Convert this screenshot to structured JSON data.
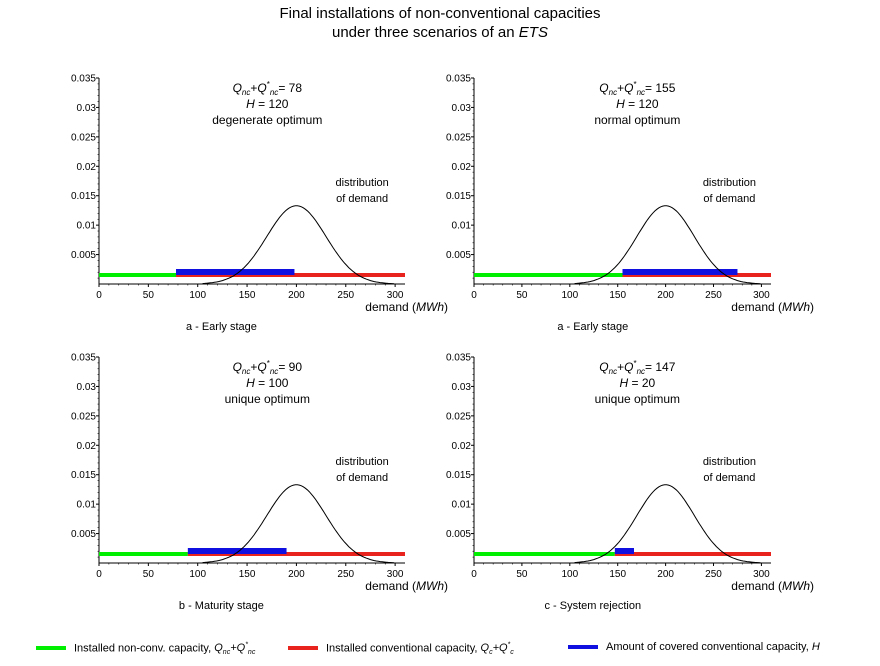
{
  "figure": {
    "title_line1": "Final installations of non-conventional capacities",
    "title_line2_prefix": "under three scenarios of an ",
    "title_line2_em": "ETS"
  },
  "colors": {
    "non_conventional": "#00ee00",
    "conventional": "#e8231e",
    "covered": "#1010e0",
    "distribution": "#000000"
  },
  "legend": [
    {
      "key": "non_conventional",
      "label": "Installed non-conv. capacity, ",
      "symbol": "Q_nc+Q*_nc"
    },
    {
      "key": "conventional",
      "label": "Installed conventional capacity, ",
      "symbol": "Q_c+Q*_c"
    },
    {
      "key": "covered",
      "label": "Amount of covered conventional capacity, ",
      "symbol": "H"
    }
  ],
  "chart_data": [
    {
      "type": "line",
      "caption": "a - Early stage",
      "xlabel": "demand",
      "xlabel_unit": "MWh",
      "xlim": [
        0,
        310
      ],
      "ylim": [
        0,
        0.035
      ],
      "xticks": [
        0,
        50,
        100,
        150,
        200,
        250,
        300
      ],
      "yticks": [
        "0.005",
        "0.01",
        "0.015",
        "0.02",
        "0.025",
        "0.03",
        "0.035"
      ],
      "annotations": {
        "q_value": "78",
        "h_value": "120",
        "optimum": "degenerate optimum",
        "curve_label": [
          "distribution",
          "of demand"
        ]
      },
      "distribution": {
        "mean": 200,
        "sd": 30,
        "peak": 0.0133
      },
      "bars": {
        "non_conventional": [
          0,
          78
        ],
        "conventional": [
          78,
          310
        ],
        "covered": [
          78,
          198
        ]
      }
    },
    {
      "type": "line",
      "caption": "a - Early stage",
      "xlabel": "demand",
      "xlabel_unit": "MWh",
      "xlim": [
        0,
        310
      ],
      "ylim": [
        0,
        0.035
      ],
      "xticks": [
        0,
        50,
        100,
        150,
        200,
        250,
        300
      ],
      "yticks": [
        "0.005",
        "0.01",
        "0.015",
        "0.02",
        "0.025",
        "0.03",
        "0.035"
      ],
      "annotations": {
        "q_value": "155",
        "h_value": "120",
        "optimum": "normal optimum",
        "curve_label": [
          "distribution",
          "of demand"
        ]
      },
      "distribution": {
        "mean": 200,
        "sd": 30,
        "peak": 0.0133
      },
      "bars": {
        "non_conventional": [
          0,
          155
        ],
        "conventional": [
          155,
          310
        ],
        "covered": [
          155,
          275
        ]
      }
    },
    {
      "type": "line",
      "caption": "b - Maturity stage",
      "xlabel": "demand",
      "xlabel_unit": "MWh",
      "xlim": [
        0,
        310
      ],
      "ylim": [
        0,
        0.035
      ],
      "xticks": [
        0,
        50,
        100,
        150,
        200,
        250,
        300
      ],
      "yticks": [
        "0.005",
        "0.01",
        "0.015",
        "0.02",
        "0.025",
        "0.03",
        "0.035"
      ],
      "annotations": {
        "q_value": "90",
        "h_value": "100",
        "optimum": "unique optimum",
        "curve_label": [
          "distribution",
          "of demand"
        ]
      },
      "distribution": {
        "mean": 200,
        "sd": 30,
        "peak": 0.0133
      },
      "bars": {
        "non_conventional": [
          0,
          90
        ],
        "conventional": [
          90,
          310
        ],
        "covered": [
          90,
          190
        ]
      }
    },
    {
      "type": "line",
      "caption": "c - System rejection",
      "xlabel": "demand",
      "xlabel_unit": "MWh",
      "xlim": [
        0,
        310
      ],
      "ylim": [
        0,
        0.035
      ],
      "xticks": [
        0,
        50,
        100,
        150,
        200,
        250,
        300
      ],
      "yticks": [
        "0.005",
        "0.01",
        "0.015",
        "0.02",
        "0.025",
        "0.03",
        "0.035"
      ],
      "annotations": {
        "q_value": "147",
        "h_value": "20",
        "optimum": "unique optimum",
        "curve_label": [
          "distribution",
          "of demand"
        ]
      },
      "distribution": {
        "mean": 200,
        "sd": 30,
        "peak": 0.0133
      },
      "bars": {
        "non_conventional": [
          0,
          147
        ],
        "conventional": [
          147,
          310
        ],
        "covered": [
          147,
          167
        ]
      }
    }
  ]
}
